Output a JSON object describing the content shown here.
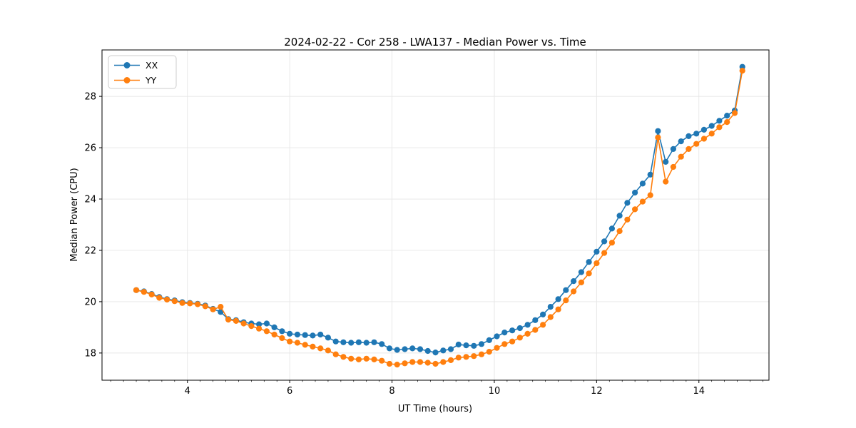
{
  "chart_data": {
    "type": "line",
    "title": "2024-02-22 - Cor 258 - LWA137 - Median Power vs. Time",
    "xlabel": "UT Time (hours)",
    "ylabel": "Median Power (CPU)",
    "xlim": [
      2.33,
      15.37
    ],
    "ylim": [
      16.94,
      29.81
    ],
    "x_ticks": [
      4,
      6,
      8,
      10,
      12,
      14
    ],
    "y_ticks": [
      18,
      20,
      22,
      24,
      26,
      28
    ],
    "x_minor_step": 0.25,
    "grid": true,
    "legend_position": "upper-left",
    "background_color": "#ffffff",
    "grid_color": "#e6e6e6",
    "x": [
      3.0,
      3.15,
      3.3,
      3.45,
      3.6,
      3.75,
      3.9,
      4.05,
      4.2,
      4.35,
      4.5,
      4.65,
      4.8,
      4.95,
      5.1,
      5.25,
      5.4,
      5.55,
      5.7,
      5.85,
      6.0,
      6.15,
      6.3,
      6.45,
      6.6,
      6.75,
      6.9,
      7.05,
      7.2,
      7.35,
      7.5,
      7.65,
      7.8,
      7.95,
      8.1,
      8.25,
      8.4,
      8.55,
      8.7,
      8.85,
      9.0,
      9.15,
      9.3,
      9.45,
      9.6,
      9.75,
      9.9,
      10.05,
      10.2,
      10.35,
      10.5,
      10.65,
      10.8,
      10.95,
      11.1,
      11.25,
      11.4,
      11.55,
      11.7,
      11.85,
      12.0,
      12.15,
      12.3,
      12.45,
      12.6,
      12.75,
      12.9,
      13.05,
      13.2,
      13.35,
      13.5,
      13.65,
      13.8,
      13.95,
      14.1,
      14.25,
      14.4,
      14.55,
      14.7,
      14.85
    ],
    "series": [
      {
        "name": "XX",
        "color": "#1f77b4",
        "values": [
          20.45,
          20.4,
          20.3,
          20.18,
          20.1,
          20.05,
          19.98,
          19.95,
          19.92,
          19.85,
          19.72,
          19.6,
          19.32,
          19.28,
          19.2,
          19.15,
          19.12,
          19.15,
          19.0,
          18.85,
          18.75,
          18.72,
          18.7,
          18.68,
          18.72,
          18.6,
          18.45,
          18.42,
          18.4,
          18.42,
          18.4,
          18.42,
          18.35,
          18.18,
          18.12,
          18.15,
          18.18,
          18.15,
          18.08,
          18.02,
          18.1,
          18.15,
          18.33,
          18.3,
          18.28,
          18.35,
          18.5,
          18.65,
          18.8,
          18.88,
          18.97,
          19.1,
          19.28,
          19.5,
          19.8,
          20.1,
          20.45,
          20.8,
          21.15,
          21.55,
          21.95,
          22.35,
          22.85,
          23.35,
          23.85,
          24.25,
          24.6,
          24.95,
          26.65,
          25.45,
          25.95,
          26.25,
          26.45,
          26.55,
          26.7,
          26.85,
          27.05,
          27.25,
          27.45,
          29.15
        ]
      },
      {
        "name": "YY",
        "color": "#ff7f0e",
        "values": [
          20.45,
          20.38,
          20.28,
          20.15,
          20.08,
          20.02,
          19.95,
          19.93,
          19.9,
          19.82,
          19.7,
          19.8,
          19.3,
          19.25,
          19.15,
          19.05,
          18.95,
          18.85,
          18.72,
          18.58,
          18.45,
          18.4,
          18.32,
          18.25,
          18.18,
          18.1,
          17.95,
          17.85,
          17.78,
          17.75,
          17.78,
          17.75,
          17.7,
          17.58,
          17.55,
          17.6,
          17.65,
          17.65,
          17.62,
          17.58,
          17.65,
          17.72,
          17.82,
          17.85,
          17.88,
          17.95,
          18.05,
          18.2,
          18.35,
          18.45,
          18.6,
          18.75,
          18.9,
          19.1,
          19.4,
          19.7,
          20.05,
          20.4,
          20.75,
          21.1,
          21.5,
          21.9,
          22.3,
          22.75,
          23.2,
          23.6,
          23.9,
          24.15,
          26.4,
          24.68,
          25.25,
          25.65,
          25.95,
          26.15,
          26.35,
          26.55,
          26.8,
          27.0,
          27.35,
          29.0
        ]
      }
    ]
  }
}
